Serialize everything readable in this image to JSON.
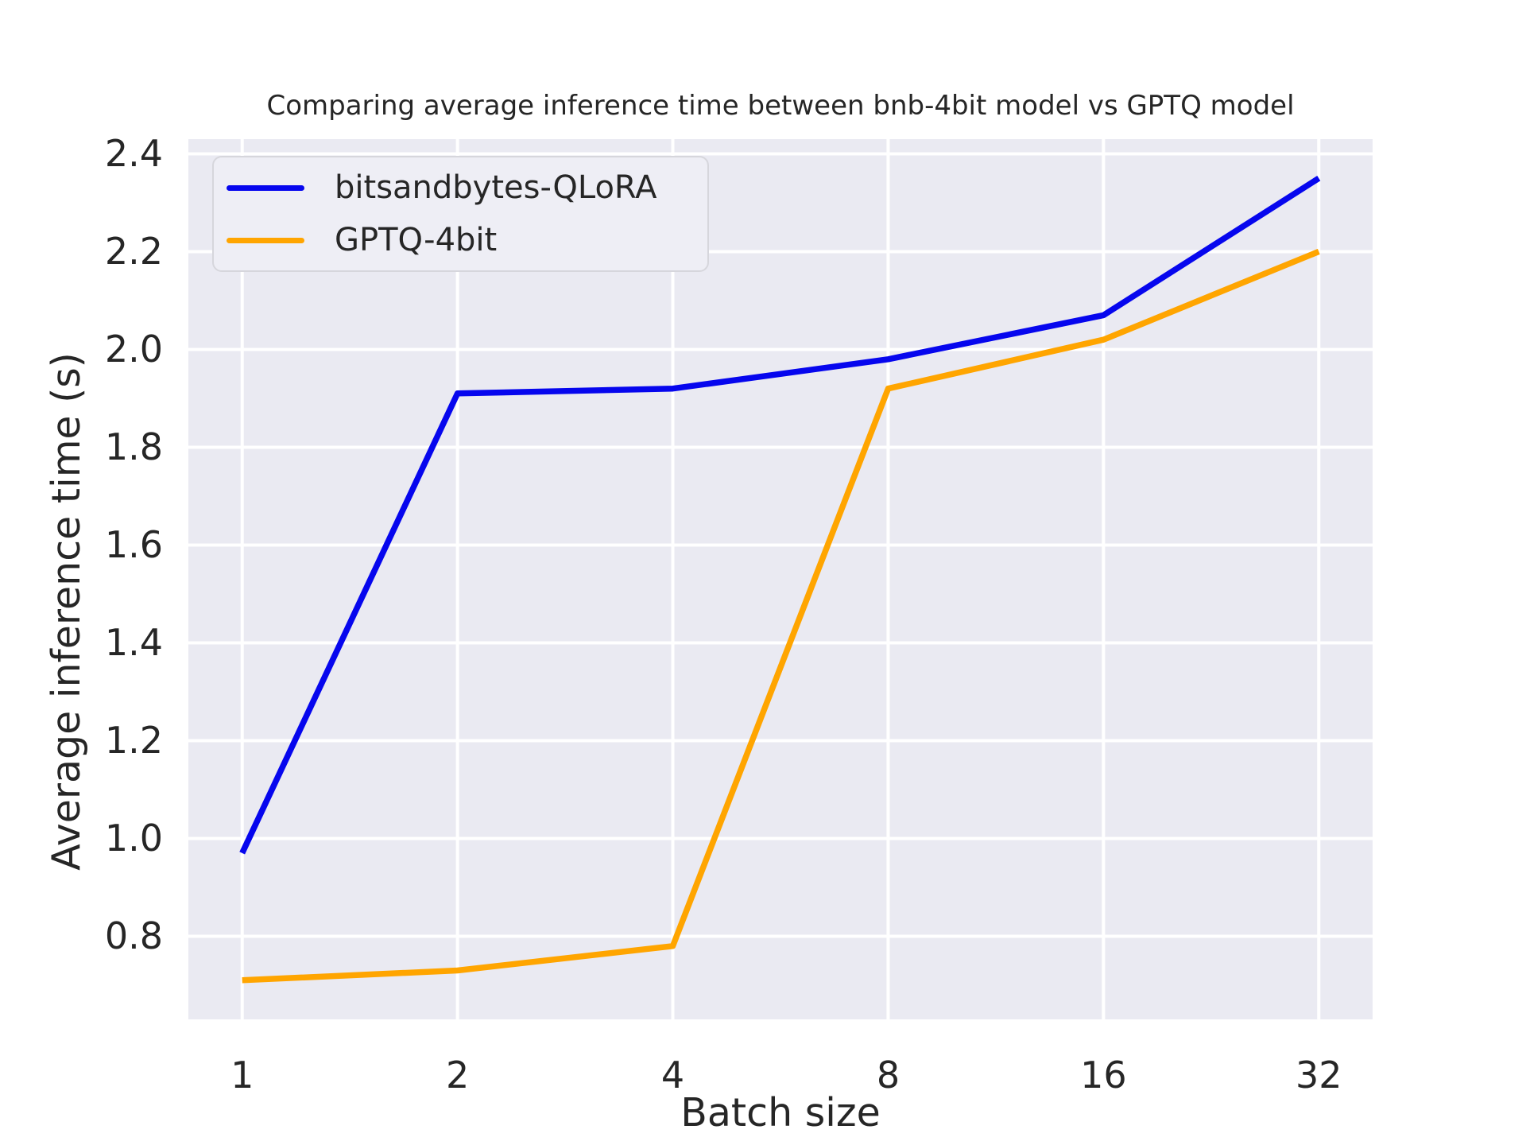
{
  "chart_data": {
    "type": "line",
    "title": "Comparing average inference time between bnb-4bit model vs GPTQ model",
    "xlabel": "Batch size",
    "ylabel": "Average inference time (s)",
    "x_scale": "log2",
    "categories": [
      1,
      2,
      4,
      8,
      16,
      32
    ],
    "x_tick_labels": [
      "1",
      "2",
      "4",
      "8",
      "16",
      "32"
    ],
    "y_ticks": [
      0.8,
      1.0,
      1.2,
      1.4,
      1.6,
      1.8,
      2.0,
      2.2,
      2.4
    ],
    "y_tick_labels": [
      "0.8",
      "1.0",
      "1.2",
      "1.4",
      "1.6",
      "1.8",
      "2.0",
      "2.2",
      "2.4"
    ],
    "xlim_log2": [
      -0.25,
      5.25
    ],
    "ylim": [
      0.63,
      2.43
    ],
    "grid": true,
    "legend_position": "upper left",
    "series": [
      {
        "name": "bitsandbytes-QLoRA",
        "color": "#0606ee",
        "values": [
          0.97,
          1.91,
          1.92,
          1.98,
          2.07,
          2.35
        ]
      },
      {
        "name": "GPTQ-4bit",
        "color": "#ffa500",
        "values": [
          0.71,
          0.73,
          0.78,
          1.92,
          2.02,
          2.2
        ]
      }
    ]
  },
  "style": {
    "figure_bg": "#ffffff",
    "plot_bg": "#eaeaf2",
    "grid_color": "#ffffff",
    "text_color": "#262626",
    "legend_bg": "#eeeef5",
    "legend_border": "#d6d6dc"
  }
}
